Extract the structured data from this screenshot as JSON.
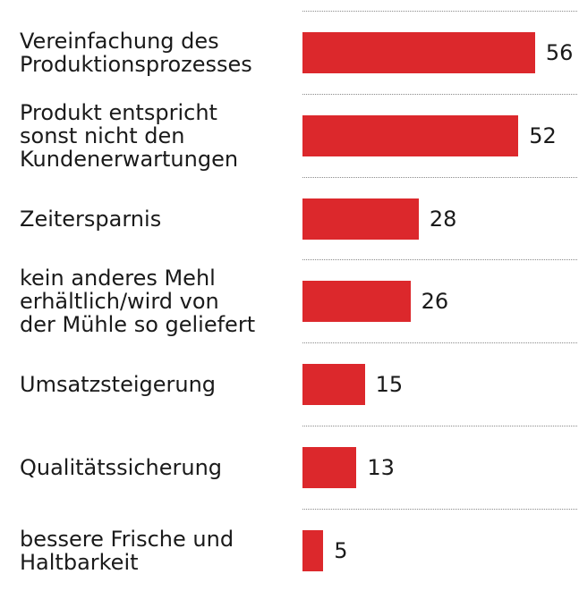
{
  "chart_data": {
    "type": "bar",
    "orientation": "horizontal",
    "color": "#dc282c",
    "categories": [
      "Vereinfachung des\nProduktionsprozesses",
      "Produkt entspricht\nsonst nicht den\nKundenerwartungen",
      "Zeitersparnis",
      "kein anderes Mehl\nerhältlich/wird von\nder Mühle so geliefert",
      "Umsatzsteigerung",
      "Qualitätssicherung",
      "bessere Frische und\nHaltbarkeit"
    ],
    "values": [
      56,
      52,
      28,
      26,
      15,
      13,
      5
    ]
  }
}
